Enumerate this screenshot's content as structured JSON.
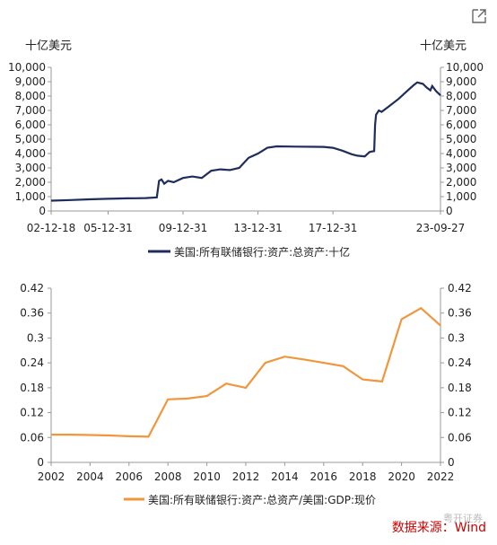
{
  "expand_icon": "expand-arrow-icon",
  "source": "数据来源：Wind",
  "watermark": "粤开证券",
  "colors": {
    "navy": "#1f2d5c",
    "orange": "#f0963c",
    "axis": "#999999"
  },
  "chart_data": [
    {
      "type": "line",
      "y_unit_left": "十亿美元",
      "y_unit_right": "十亿美元",
      "legend": "美国:所有联储银行:资产:总资产:十亿",
      "xtick_labels": [
        "02-12-18",
        "05-12-31",
        "09-12-31",
        "13-12-31",
        "17-12-31",
        "23-09-27"
      ],
      "ytick_labels": [
        "0",
        "1,000",
        "2,000",
        "3,000",
        "4,000",
        "5,000",
        "6,000",
        "7,000",
        "8,000",
        "9,000",
        "10,000"
      ],
      "ylim": [
        0,
        10000
      ],
      "x_range": [
        2002.96,
        2023.74
      ],
      "xtick_positions": [
        2002.96,
        2006.0,
        2010.0,
        2014.0,
        2018.0,
        2023.74
      ],
      "series": [
        {
          "name": "美国:所有联储银行:资产:总资产:十亿",
          "x": [
            2002.96,
            2004.0,
            2005.0,
            2006.0,
            2007.0,
            2007.5,
            2008.0,
            2008.6,
            2008.72,
            2008.85,
            2009.0,
            2009.2,
            2009.5,
            2010.0,
            2010.5,
            2011.0,
            2011.5,
            2012.0,
            2012.5,
            2013.0,
            2013.5,
            2014.0,
            2014.5,
            2015.0,
            2016.0,
            2017.0,
            2017.5,
            2018.0,
            2018.5,
            2019.0,
            2019.3,
            2019.7,
            2019.95,
            2020.1,
            2020.2,
            2020.25,
            2020.3,
            2020.45,
            2020.6,
            2021.0,
            2021.5,
            2022.0,
            2022.3,
            2022.5,
            2022.8,
            2023.0,
            2023.2,
            2023.3,
            2023.5,
            2023.74
          ],
          "y": [
            720,
            760,
            810,
            850,
            880,
            890,
            900,
            950,
            2100,
            2200,
            1900,
            2100,
            2000,
            2300,
            2400,
            2300,
            2800,
            2900,
            2850,
            3000,
            3700,
            4000,
            4400,
            4500,
            4480,
            4470,
            4460,
            4400,
            4200,
            3950,
            3850,
            3800,
            4100,
            4150,
            4170,
            6000,
            6700,
            7000,
            6900,
            7300,
            7800,
            8400,
            8750,
            8950,
            8850,
            8600,
            8400,
            8700,
            8350,
            8050
          ]
        }
      ]
    },
    {
      "type": "line",
      "legend": "美国:所有联储银行:资产:总资产/美国:GDP:现价",
      "xtick_labels": [
        "2002",
        "2004",
        "2006",
        "2008",
        "2010",
        "2012",
        "2014",
        "2016",
        "2018",
        "2020",
        "2022"
      ],
      "ytick_labels": [
        "0",
        "0.06",
        "0.12",
        "0.18",
        "0.24",
        "0.3",
        "0.36",
        "0.42"
      ],
      "ylim": [
        0,
        0.42
      ],
      "xlim": [
        2002,
        2022
      ],
      "series": [
        {
          "name": "美国:所有联储银行:资产:总资产/美国:GDP:现价",
          "x": [
            2002,
            2003,
            2004,
            2005,
            2006,
            2007,
            2008,
            2009,
            2010,
            2011,
            2012,
            2013,
            2014,
            2015,
            2016,
            2017,
            2018,
            2019,
            2020,
            2021,
            2022
          ],
          "y": [
            0.067,
            0.067,
            0.066,
            0.065,
            0.063,
            0.062,
            0.152,
            0.154,
            0.16,
            0.19,
            0.18,
            0.24,
            0.255,
            0.248,
            0.24,
            0.232,
            0.2,
            0.195,
            0.345,
            0.372,
            0.33
          ]
        }
      ]
    }
  ]
}
